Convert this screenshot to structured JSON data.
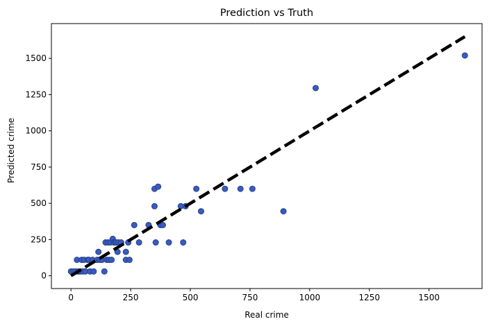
{
  "chart_data": {
    "type": "scatter",
    "title": "Prediction vs Truth",
    "xlabel": "Real crime",
    "ylabel": "Predicted crime",
    "xlim": [
      -82,
      1722
    ],
    "ylim": [
      -88,
      1740
    ],
    "xticks": [
      0,
      250,
      500,
      750,
      1000,
      1250,
      1500
    ],
    "yticks": [
      0,
      250,
      500,
      750,
      1000,
      1250,
      1500
    ],
    "grid": false,
    "legend": "none",
    "point_color": "#3a5bbf",
    "point_edge_color": "#26408a",
    "reference_line": {
      "style": "dashed",
      "color": "#000000",
      "x": [
        0,
        1650
      ],
      "y": [
        0,
        1650
      ]
    },
    "points": [
      {
        "x": 0,
        "y": 30
      },
      {
        "x": 10,
        "y": 30
      },
      {
        "x": 20,
        "y": 30
      },
      {
        "x": 25,
        "y": 110
      },
      {
        "x": 30,
        "y": 30
      },
      {
        "x": 35,
        "y": 30
      },
      {
        "x": 40,
        "y": 30
      },
      {
        "x": 45,
        "y": 110
      },
      {
        "x": 50,
        "y": 30
      },
      {
        "x": 55,
        "y": 110
      },
      {
        "x": 60,
        "y": 30
      },
      {
        "x": 70,
        "y": 110
      },
      {
        "x": 75,
        "y": 110
      },
      {
        "x": 80,
        "y": 30
      },
      {
        "x": 90,
        "y": 110
      },
      {
        "x": 95,
        "y": 30
      },
      {
        "x": 110,
        "y": 110
      },
      {
        "x": 115,
        "y": 165
      },
      {
        "x": 120,
        "y": 110
      },
      {
        "x": 130,
        "y": 110
      },
      {
        "x": 140,
        "y": 30
      },
      {
        "x": 145,
        "y": 230
      },
      {
        "x": 150,
        "y": 110
      },
      {
        "x": 155,
        "y": 230
      },
      {
        "x": 160,
        "y": 110
      },
      {
        "x": 165,
        "y": 230
      },
      {
        "x": 170,
        "y": 110
      },
      {
        "x": 175,
        "y": 255
      },
      {
        "x": 180,
        "y": 230
      },
      {
        "x": 185,
        "y": 230
      },
      {
        "x": 190,
        "y": 230
      },
      {
        "x": 195,
        "y": 165
      },
      {
        "x": 200,
        "y": 230
      },
      {
        "x": 210,
        "y": 230
      },
      {
        "x": 230,
        "y": 110
      },
      {
        "x": 230,
        "y": 165
      },
      {
        "x": 240,
        "y": 230
      },
      {
        "x": 245,
        "y": 110
      },
      {
        "x": 265,
        "y": 350
      },
      {
        "x": 285,
        "y": 230
      },
      {
        "x": 325,
        "y": 350
      },
      {
        "x": 350,
        "y": 600
      },
      {
        "x": 350,
        "y": 480
      },
      {
        "x": 355,
        "y": 230
      },
      {
        "x": 365,
        "y": 615
      },
      {
        "x": 375,
        "y": 350
      },
      {
        "x": 385,
        "y": 350
      },
      {
        "x": 410,
        "y": 230
      },
      {
        "x": 460,
        "y": 480
      },
      {
        "x": 470,
        "y": 230
      },
      {
        "x": 480,
        "y": 480
      },
      {
        "x": 525,
        "y": 600
      },
      {
        "x": 545,
        "y": 445
      },
      {
        "x": 645,
        "y": 600
      },
      {
        "x": 710,
        "y": 600
      },
      {
        "x": 760,
        "y": 600
      },
      {
        "x": 890,
        "y": 445
      },
      {
        "x": 1025,
        "y": 1295
      },
      {
        "x": 1650,
        "y": 1520
      }
    ]
  }
}
